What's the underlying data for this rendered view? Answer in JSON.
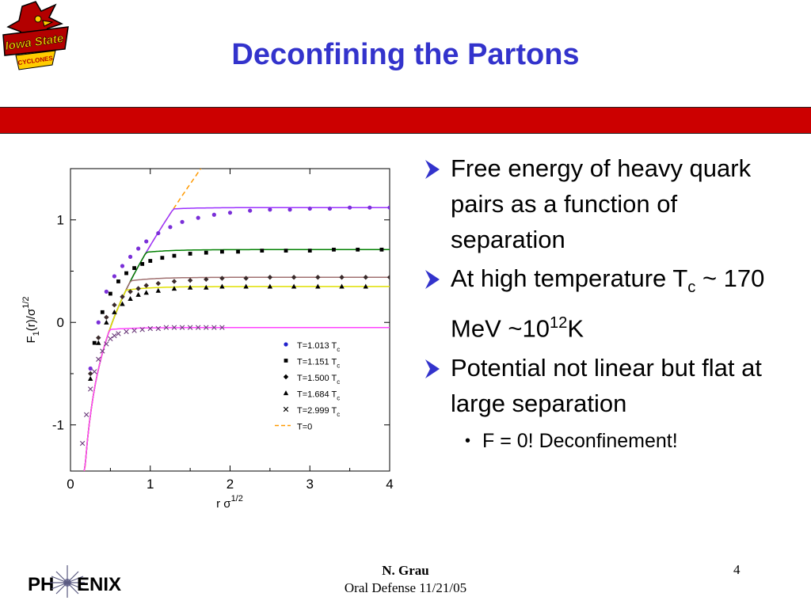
{
  "slide": {
    "title": "Deconfining the Partons",
    "logo_text": "Iowa State Cyclones",
    "colors": {
      "title": "#3333cc",
      "bar": "#cc0000",
      "arrow": "#3333cc"
    }
  },
  "bullets": [
    {
      "parts": [
        "Free energy of heavy quark pairs as a function of separation"
      ]
    },
    {
      "parts": [
        "At high temperature T",
        "c",
        " ~ 170 MeV ~10",
        "12",
        "K"
      ]
    },
    {
      "parts": [
        "Potential not linear but flat at large separation"
      ]
    }
  ],
  "sub_bullet": {
    "prefix": "F",
    "text": " = 0! Deconfinement!"
  },
  "footer": {
    "author": "N. Grau",
    "event": "Oral Defense 11/21/05",
    "page": "4",
    "logo_text": "PHENIX"
  },
  "chart_data": {
    "type": "scatter",
    "xlabel": "r σ1/2",
    "ylabel": "F1(r)/σ1/2",
    "xlim": [
      0,
      4
    ],
    "ylim": [
      -1.45,
      1.5
    ],
    "x_ticks": [
      "0",
      "1",
      "2",
      "3",
      "4"
    ],
    "y_ticks": [
      "1",
      "0",
      "-1"
    ],
    "legend_position": "bottom-right",
    "series": [
      {
        "name": "T=1.013 Tc",
        "marker": "circle",
        "color": "#7a2fd8",
        "plateau": 1.12,
        "curve": "#9b30ff",
        "x": [
          0.25,
          0.35,
          0.45,
          0.55,
          0.65,
          0.75,
          0.85,
          0.95,
          1.1,
          1.25,
          1.4,
          1.6,
          1.8,
          2.0,
          2.25,
          2.5,
          2.75,
          3.0,
          3.25,
          3.5,
          3.75,
          4.0
        ],
        "y": [
          -0.45,
          0.0,
          0.3,
          0.45,
          0.55,
          0.64,
          0.72,
          0.79,
          0.87,
          0.93,
          0.98,
          1.02,
          1.05,
          1.07,
          1.09,
          1.1,
          1.1,
          1.11,
          1.11,
          1.12,
          1.12,
          1.12
        ]
      },
      {
        "name": "T=1.151 Tc",
        "marker": "square",
        "color": "#000000",
        "plateau": 0.71,
        "curve": "#008000",
        "x": [
          0.3,
          0.4,
          0.5,
          0.6,
          0.7,
          0.8,
          0.9,
          1.0,
          1.15,
          1.3,
          1.5,
          1.7,
          1.9,
          2.1,
          2.4,
          2.7,
          3.0,
          3.3,
          3.6,
          3.9
        ],
        "y": [
          -0.2,
          0.1,
          0.28,
          0.4,
          0.48,
          0.53,
          0.57,
          0.6,
          0.63,
          0.65,
          0.67,
          0.68,
          0.69,
          0.69,
          0.7,
          0.7,
          0.7,
          0.71,
          0.71,
          0.71
        ]
      },
      {
        "name": "T=1.500 Tc",
        "marker": "diamond",
        "color": "#3a2a2a",
        "plateau": 0.44,
        "curve": "#a07070",
        "x": [
          0.25,
          0.35,
          0.45,
          0.55,
          0.65,
          0.75,
          0.85,
          0.95,
          1.1,
          1.3,
          1.5,
          1.7,
          1.9,
          2.2,
          2.5,
          2.8,
          3.1,
          3.4,
          3.7,
          4.0
        ],
        "y": [
          -0.5,
          -0.15,
          0.05,
          0.17,
          0.25,
          0.3,
          0.33,
          0.36,
          0.38,
          0.4,
          0.41,
          0.42,
          0.43,
          0.43,
          0.44,
          0.44,
          0.44,
          0.44,
          0.44,
          0.44
        ]
      },
      {
        "name": "T=1.684 Tc",
        "marker": "triangle",
        "color": "#000000",
        "plateau": 0.35,
        "curve": "#e0e000",
        "x": [
          0.25,
          0.35,
          0.45,
          0.55,
          0.65,
          0.75,
          0.85,
          0.95,
          1.1,
          1.3,
          1.5,
          1.7,
          1.9,
          2.2,
          2.5,
          2.8,
          3.1,
          3.4,
          3.7
        ],
        "y": [
          -0.55,
          -0.2,
          0.0,
          0.1,
          0.18,
          0.23,
          0.27,
          0.29,
          0.31,
          0.33,
          0.34,
          0.34,
          0.35,
          0.35,
          0.35,
          0.35,
          0.35,
          0.35,
          0.35
        ]
      },
      {
        "name": "T=2.999 Tc",
        "marker": "cross",
        "color": "#6a3a7a",
        "plateau": -0.05,
        "curve": "#ff44ff",
        "x": [
          0.15,
          0.2,
          0.25,
          0.3,
          0.35,
          0.4,
          0.45,
          0.5,
          0.55,
          0.6,
          0.7,
          0.8,
          0.9,
          1.0,
          1.1,
          1.2,
          1.3,
          1.4,
          1.5,
          1.6,
          1.7,
          1.8,
          1.9
        ],
        "y": [
          -1.18,
          -0.9,
          -0.65,
          -0.48,
          -0.36,
          -0.28,
          -0.21,
          -0.16,
          -0.13,
          -0.11,
          -0.09,
          -0.08,
          -0.07,
          -0.06,
          -0.06,
          -0.05,
          -0.05,
          -0.05,
          -0.05,
          -0.05,
          -0.05,
          -0.05,
          -0.05
        ]
      },
      {
        "name": "T=0",
        "marker": "dashed",
        "color": "#ff9900"
      }
    ]
  }
}
